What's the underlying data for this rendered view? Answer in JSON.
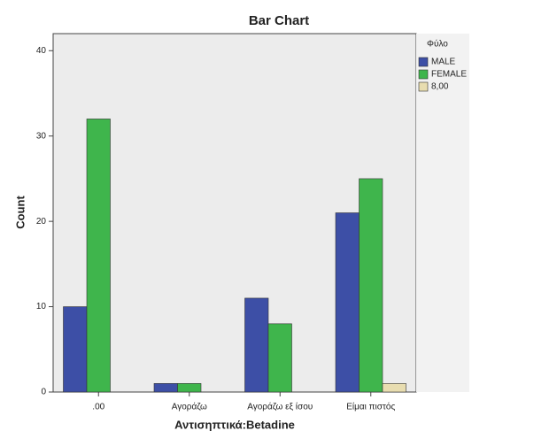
{
  "chart_data": {
    "type": "bar",
    "title": "Bar Chart",
    "x_label": "Αντισηπτικά:Betadine",
    "y_label": "Count",
    "categories": [
      ".00",
      "Αγοράζω",
      "Αγοράζω εξ ίσου",
      "Είμαι πιστός"
    ],
    "legend_title": "Φύλο",
    "series": [
      {
        "name": "MALE",
        "color": "#3d4fa6",
        "values": [
          10,
          1,
          11,
          21
        ]
      },
      {
        "name": "FEMALE",
        "color": "#3fb54c",
        "values": [
          32,
          1,
          8,
          25
        ]
      },
      {
        "name": "8,00",
        "color": "#e8ddb0",
        "values": [
          0,
          0,
          0,
          1
        ]
      }
    ],
    "ylim": [
      0,
      42
    ],
    "yticks": [
      0,
      10,
      20,
      30,
      40
    ],
    "legend": "right"
  }
}
